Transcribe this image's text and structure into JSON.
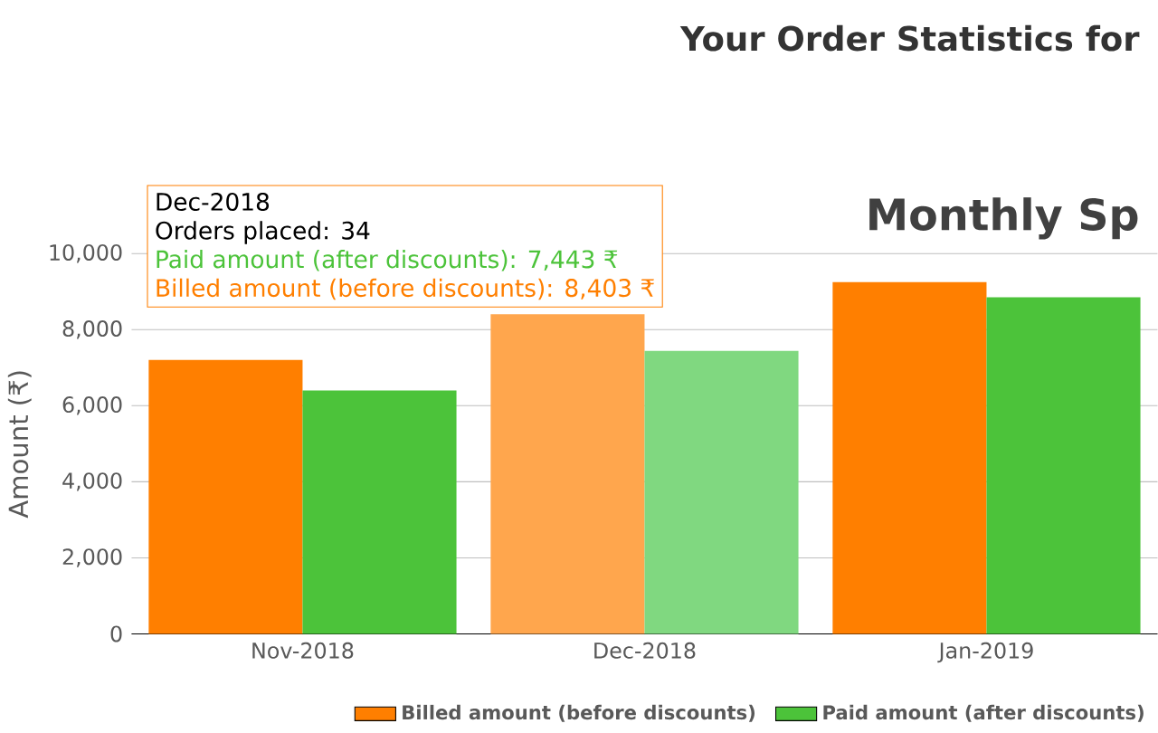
{
  "chart_data": {
    "type": "bar",
    "title": "Your Order Statistics for",
    "subtitle": "Monthly Sp",
    "categories": [
      "Nov-2018",
      "Dec-2018",
      "Jan-2019"
    ],
    "series": [
      {
        "name": "Billed amount (before discounts)",
        "color": "#ff7f00",
        "colors": [
          "#ff7f00",
          "#ffa64d",
          "#ff7f00"
        ],
        "values": [
          7200,
          8403,
          9250
        ]
      },
      {
        "name": "Paid amount (after discounts)",
        "color": "#4cc33a",
        "colors": [
          "#4cc33a",
          "#80d880",
          "#4cc33a"
        ],
        "values": [
          6400,
          7443,
          8850
        ]
      }
    ],
    "ylabel": "Amount (₹)",
    "ylim": [
      0,
      10000
    ],
    "yticks": [
      0,
      {
        "value": 2000,
        "label": "2,000"
      },
      {
        "value": 4000,
        "label": "4,000"
      },
      {
        "value": 6000,
        "label": "6,000"
      },
      {
        "value": 8000,
        "label": "8,000"
      },
      {
        "value": 10000,
        "label": "10,000"
      }
    ],
    "grid": "y",
    "legend": "bottom right",
    "annotations": [
      "Dec-2018",
      "Orders placed: 34",
      "Paid amount (after discounts): 7,443 ₹",
      "Billed amount (before discounts):  8,403 ₹"
    ]
  }
}
